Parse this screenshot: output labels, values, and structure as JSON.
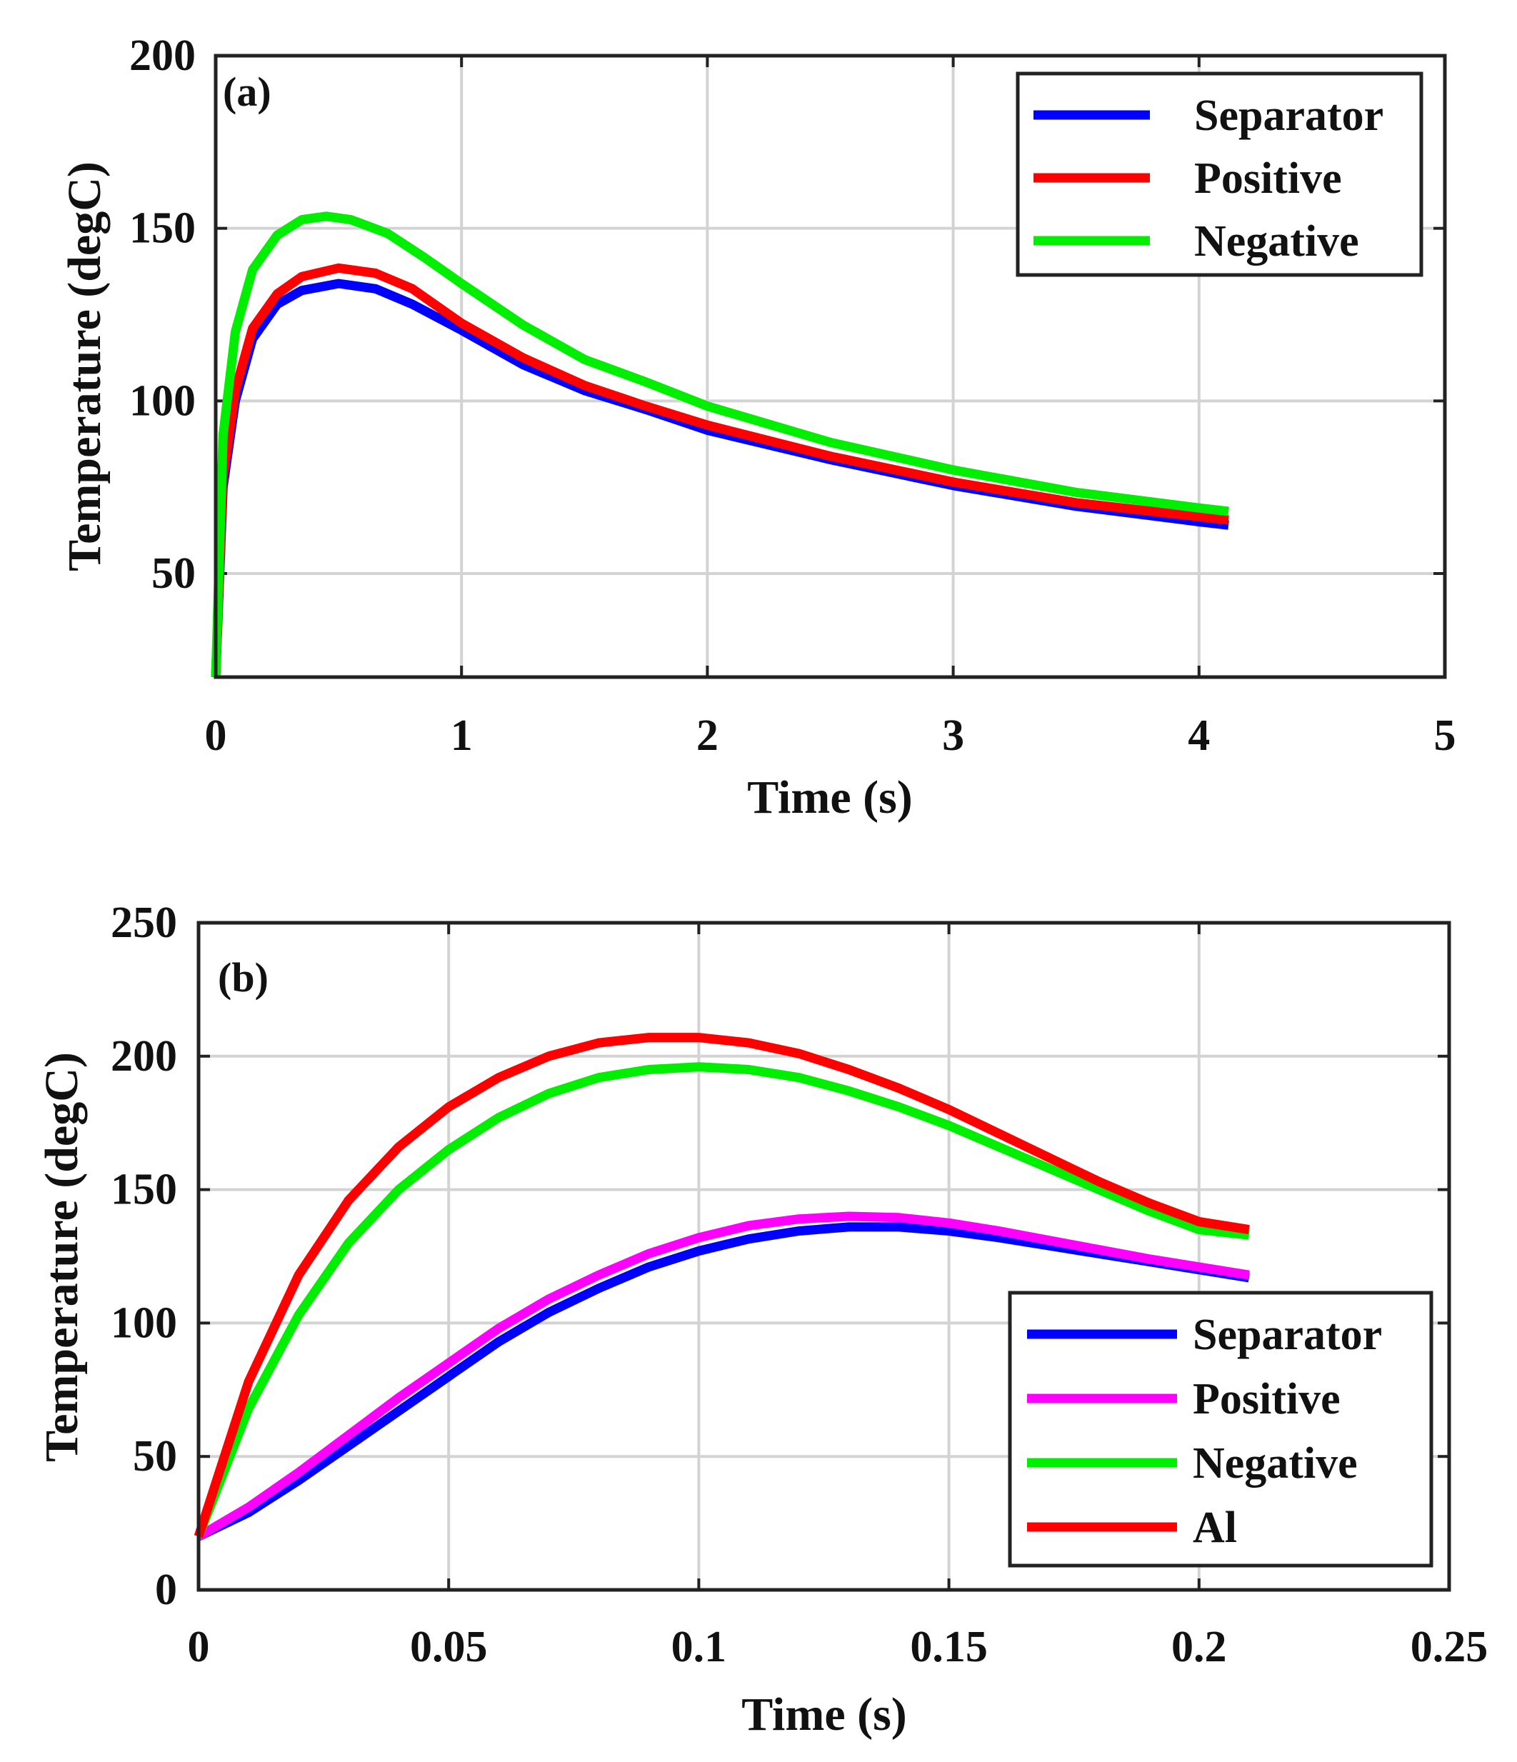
{
  "chart_data": [
    {
      "type": "line",
      "panel_label": "(a)",
      "xlabel": "Time (s)",
      "ylabel": "Temperature (degC)",
      "xlim": [
        0,
        5
      ],
      "ylim": [
        20,
        200
      ],
      "xticks": [
        0,
        1,
        2,
        3,
        4,
        5
      ],
      "xtick_labels": [
        "0",
        "1",
        "2",
        "3",
        "4",
        "5"
      ],
      "yticks": [
        50,
        100,
        150,
        200
      ],
      "ytick_labels": [
        "50",
        "100",
        "150",
        "200"
      ],
      "grid": true,
      "legend_position": "top-right",
      "series": [
        {
          "name": "Separator",
          "color": "#0000ff",
          "x": [
            0,
            0.03,
            0.08,
            0.15,
            0.25,
            0.35,
            0.5,
            0.65,
            0.8,
            1.0,
            1.25,
            1.5,
            1.75,
            2.0,
            2.5,
            3.0,
            3.5,
            4.0,
            4.12
          ],
          "y": [
            20,
            75,
            100,
            118,
            128,
            132,
            134,
            132.5,
            128,
            120.5,
            110.5,
            103,
            97.5,
            91.5,
            83,
            75.5,
            69.5,
            65,
            64
          ]
        },
        {
          "name": "Positive",
          "color": "#ff0000",
          "x": [
            0,
            0.03,
            0.08,
            0.15,
            0.25,
            0.35,
            0.5,
            0.65,
            0.8,
            1.0,
            1.25,
            1.5,
            1.75,
            2.0,
            2.5,
            3.0,
            3.5,
            4.0,
            4.12
          ],
          "y": [
            20,
            78,
            103,
            121,
            131,
            136,
            138.5,
            137,
            132.5,
            122.5,
            112.5,
            104.5,
            98.5,
            93,
            84,
            76.5,
            70.5,
            66.5,
            65.5
          ]
        },
        {
          "name": "Negative",
          "color": "#00ee00",
          "x": [
            0,
            0.03,
            0.08,
            0.15,
            0.25,
            0.35,
            0.45,
            0.55,
            0.7,
            0.85,
            1.0,
            1.25,
            1.5,
            1.75,
            2.0,
            2.5,
            3.0,
            3.5,
            4.0,
            4.12
          ],
          "y": [
            20,
            90,
            120,
            138,
            148,
            152.5,
            153.5,
            152.5,
            148.5,
            141.5,
            134,
            122,
            112,
            105.5,
            98.5,
            88,
            80,
            73.5,
            69,
            68
          ]
        }
      ]
    },
    {
      "type": "line",
      "panel_label": "(b)",
      "xlabel": "Time (s)",
      "ylabel": "Temperature (degC)",
      "xlim": [
        0,
        0.25
      ],
      "ylim": [
        0,
        250
      ],
      "xticks": [
        0,
        0.05,
        0.1,
        0.15,
        0.2,
        0.25
      ],
      "xtick_labels": [
        "0",
        "0.05",
        "0.1",
        "0.15",
        "0.2",
        "0.25"
      ],
      "yticks": [
        0,
        50,
        100,
        150,
        200,
        250
      ],
      "ytick_labels": [
        "0",
        "50",
        "100",
        "150",
        "200",
        "250"
      ],
      "grid": true,
      "legend_position": "bottom-right",
      "series": [
        {
          "name": "Separator",
          "color": "#0000ff",
          "x": [
            0,
            0.01,
            0.02,
            0.03,
            0.04,
            0.05,
            0.06,
            0.07,
            0.08,
            0.09,
            0.1,
            0.11,
            0.12,
            0.13,
            0.14,
            0.15,
            0.16,
            0.17,
            0.18,
            0.19,
            0.2,
            0.21
          ],
          "y": [
            20,
            29,
            41,
            54,
            67,
            80,
            93,
            104,
            113,
            121,
            127,
            131.5,
            134.5,
            136,
            136,
            134.5,
            132,
            129,
            126,
            123,
            120,
            117
          ]
        },
        {
          "name": "Positive",
          "color": "#ff00ff",
          "x": [
            0,
            0.01,
            0.02,
            0.03,
            0.04,
            0.05,
            0.06,
            0.07,
            0.08,
            0.09,
            0.1,
            0.11,
            0.12,
            0.13,
            0.14,
            0.15,
            0.16,
            0.17,
            0.18,
            0.19,
            0.2,
            0.21
          ],
          "y": [
            20,
            31,
            44,
            58,
            72,
            85,
            98,
            109,
            118,
            126,
            132,
            136.5,
            139,
            140,
            139.5,
            137.5,
            134.5,
            131,
            127.5,
            124,
            121,
            118
          ]
        },
        {
          "name": "Negative",
          "color": "#00ee00",
          "x": [
            0,
            0.01,
            0.02,
            0.03,
            0.04,
            0.05,
            0.06,
            0.07,
            0.08,
            0.09,
            0.1,
            0.11,
            0.12,
            0.13,
            0.14,
            0.15,
            0.16,
            0.17,
            0.18,
            0.19,
            0.2,
            0.21
          ],
          "y": [
            20,
            68,
            103,
            130,
            150,
            165,
            177,
            186,
            192,
            195,
            196,
            195,
            192,
            187,
            181,
            174,
            166,
            158,
            150,
            142,
            135,
            133
          ]
        },
        {
          "name": "Al",
          "color": "#ff0000",
          "x": [
            0,
            0.01,
            0.02,
            0.03,
            0.04,
            0.05,
            0.06,
            0.07,
            0.08,
            0.09,
            0.1,
            0.11,
            0.12,
            0.13,
            0.14,
            0.15,
            0.16,
            0.17,
            0.18,
            0.19,
            0.2,
            0.21
          ],
          "y": [
            20,
            78,
            118,
            146,
            166,
            181,
            192,
            200,
            205,
            207,
            207,
            205,
            201,
            195,
            188,
            180,
            171,
            162,
            153,
            145,
            138,
            135
          ]
        }
      ]
    }
  ]
}
